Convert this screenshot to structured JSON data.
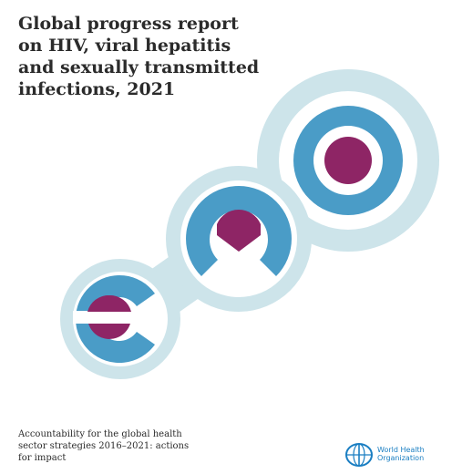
{
  "cover": {
    "title_lines": [
      "Global progress report",
      "on HIV, viral hepatitis",
      "and sexually transmitted",
      "infections, 2021"
    ],
    "subtitle_lines": [
      "Accountability for the global health",
      "sector strategies 2016–2021: actions",
      "for impact"
    ]
  },
  "publisher": {
    "logo_name": "who-emblem-icon",
    "name_lines": [
      "World Health",
      "Organization"
    ]
  },
  "colors": {
    "light_ring": "#cde4ea",
    "blue_ring": "#4a9cc7",
    "magenta": "#8e2565",
    "text": "#2b2b2b",
    "who_blue": "#1a7ec2"
  }
}
